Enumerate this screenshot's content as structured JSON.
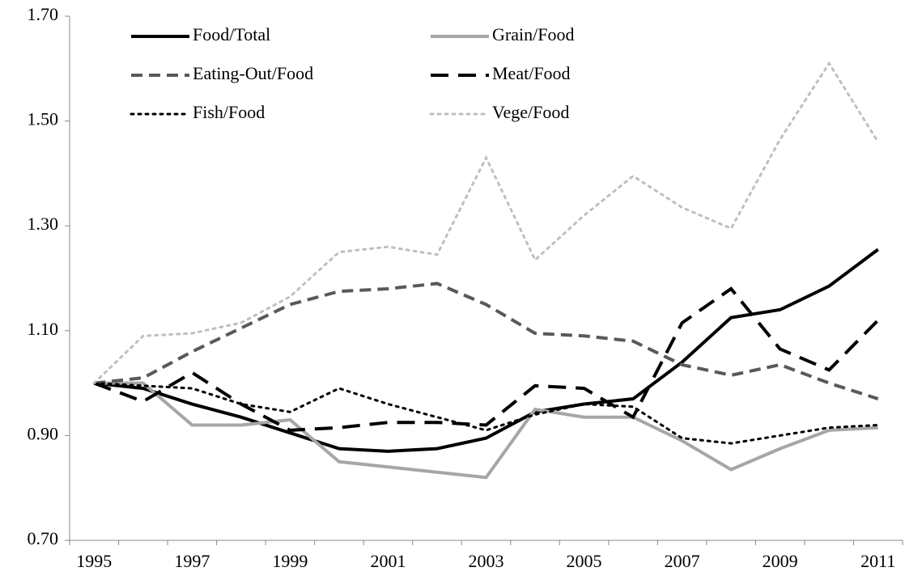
{
  "chart_data": {
    "type": "line",
    "categories": [
      "1995",
      null,
      "1997",
      null,
      "1999",
      null,
      "2001",
      null,
      "2003",
      null,
      "2005",
      null,
      "2007",
      null,
      "2009",
      null,
      "2011"
    ],
    "ylim": [
      0.7,
      1.7
    ],
    "yticks": [
      {
        "value": 0.7,
        "label": "0.70"
      },
      {
        "value": 0.9,
        "label": "0.90"
      },
      {
        "value": 1.1,
        "label": "1.10"
      },
      {
        "value": 1.3,
        "label": "1.30"
      },
      {
        "value": 1.5,
        "label": "1.50"
      },
      {
        "value": 1.7,
        "label": "1.70"
      }
    ],
    "grid": false,
    "legend": "top-left",
    "series": [
      {
        "name": "Food/Total",
        "color": "#000000",
        "dash": "solid",
        "values": [
          1.0,
          0.99,
          0.96,
          0.935,
          0.905,
          0.875,
          0.87,
          0.875,
          0.895,
          0.945,
          0.96,
          0.97,
          1.04,
          1.125,
          1.14,
          1.185,
          1.255
        ]
      },
      {
        "name": "Grain/Food",
        "color": "#a6a6a6",
        "dash": "solid",
        "values": [
          1.0,
          1.0,
          0.92,
          0.92,
          0.93,
          0.85,
          0.84,
          0.83,
          0.82,
          0.95,
          0.935,
          0.935,
          0.89,
          0.835,
          0.875,
          0.91,
          0.915
        ]
      },
      {
        "name": "Eating-Out/Food",
        "color": "#595959",
        "dash": "dashed",
        "values": [
          1.0,
          1.01,
          1.06,
          1.105,
          1.15,
          1.175,
          1.18,
          1.19,
          1.15,
          1.095,
          1.09,
          1.08,
          1.035,
          1.015,
          1.035,
          1.0,
          0.97
        ]
      },
      {
        "name": "Meat/Food",
        "color": "#000000",
        "dash": "longdash",
        "values": [
          1.0,
          0.965,
          1.02,
          0.96,
          0.91,
          0.915,
          0.925,
          0.925,
          0.92,
          0.995,
          0.99,
          0.935,
          1.115,
          1.18,
          1.065,
          1.025,
          1.12
        ]
      },
      {
        "name": "Fish/Food",
        "color": "#000000",
        "dash": "dotted",
        "values": [
          1.0,
          0.995,
          0.99,
          0.96,
          0.945,
          0.99,
          0.96,
          0.935,
          0.91,
          0.94,
          0.96,
          0.955,
          0.895,
          0.885,
          0.9,
          0.915,
          0.92
        ]
      },
      {
        "name": "Vege/Food",
        "color": "#bfbfbf",
        "dash": "dotted",
        "values": [
          1.0,
          1.09,
          1.095,
          1.115,
          1.165,
          1.25,
          1.26,
          1.245,
          1.43,
          1.235,
          1.32,
          1.395,
          1.335,
          1.295,
          1.465,
          1.61,
          1.46
        ]
      }
    ]
  }
}
